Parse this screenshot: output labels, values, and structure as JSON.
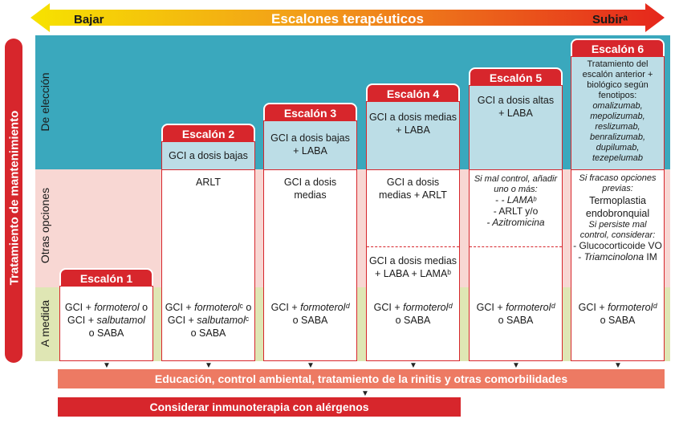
{
  "arrow": {
    "left_label": "Bajar",
    "center_label": "Escalones terapéuticos",
    "right_label": "Subirᵃ"
  },
  "main_label": "Tratamiento de mantenimiento",
  "zones": {
    "eleccion": "De elección",
    "otras": "Otras opciones",
    "medida": "A medida"
  },
  "steps": [
    {
      "name": "Escalón 1",
      "eleccion": "",
      "otras": "",
      "medida": [
        "GCI + ",
        "formoterol",
        " o",
        "GCI + ",
        "salbutamol",
        "o SABA"
      ]
    },
    {
      "name": "Escalón 2",
      "eleccion": "GCI a dosis bajas",
      "otras": "ARLT",
      "medida": [
        "GCI + ",
        "formoterol",
        "ᶜ o",
        "GCI + ",
        "salbutamol",
        "ᶜ",
        "o SABA"
      ]
    },
    {
      "name": "Escalón 3",
      "eleccion": [
        "GCI a dosis bajas",
        "+ LABA"
      ],
      "otras": [
        "GCI a dosis",
        "medias"
      ],
      "medida": [
        "GCI + ",
        "formoterol",
        "ᵈ",
        "o SABA"
      ]
    },
    {
      "name": "Escalón 4",
      "eleccion": [
        "GCI a dosis medias",
        "+ LABA"
      ],
      "otras": [
        "GCI a dosis",
        "medias + ARLT"
      ],
      "otras2": [
        "GCI a dosis medias",
        "+ LABA + LAMAᵇ"
      ],
      "medida": [
        "GCI + ",
        "formoterol",
        "ᵈ",
        "o SABA"
      ]
    },
    {
      "name": "Escalón 5",
      "eleccion": [
        "GCI a dosis altas",
        "+ LABA"
      ],
      "otras": [
        "Si mal control, añadir",
        "uno o más:",
        "- LAMA",
        "ᵇ",
        "- ARLT y/o",
        "- Azitromicina"
      ],
      "medida": [
        "GCI + ",
        "formoterol",
        "ᵈ",
        "o SABA"
      ]
    },
    {
      "name": "Escalón 6",
      "eleccion": [
        "Tratamiento del",
        "escalón anterior +",
        "biológico según",
        "fenotipos:",
        "omalizumab,",
        "mepolizumab,",
        "reslizumab,",
        "benralizumab,",
        "dupilumab,",
        "tezepelumab"
      ],
      "otras": [
        "Si fracaso opciones",
        "previas:",
        "Termoplastia",
        "endobronquial",
        "Si persiste mal",
        "control, considerar:",
        "- Glucocorticoide VO",
        "- ",
        "Triamcinolona",
        " IM"
      ],
      "medida": [
        "GCI + ",
        "formoterol",
        "ᵈ",
        "o SABA"
      ]
    }
  ],
  "bottom": {
    "education": "Educación, control ambiental, tratamiento de la rinitis y otras comorbilidades",
    "immunotherapy": "Considerar inmunoterapia con alérgenos"
  },
  "colors": {
    "red": "#d7262c",
    "teal": "#3aa8bd",
    "light_blue": "#bcdde6",
    "pink": "#f8d7d3",
    "green": "#dfe6b4",
    "salmon": "#ed7a63",
    "arrow_yellow": "#f5d000",
    "arrow_red": "#e5261c"
  }
}
